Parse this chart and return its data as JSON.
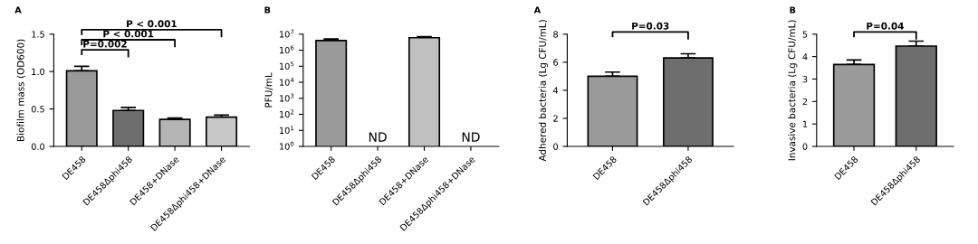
{
  "chart_data": [
    {
      "type": "bar",
      "title": "A",
      "ylabel": "Biofilm mass (OD600)",
      "categories": [
        "DE458",
        "DE458Δphi458",
        "DE458+DNase",
        "DE458Δphi458+DNase"
      ],
      "values": [
        1.01,
        0.48,
        0.36,
        0.39
      ],
      "errors": [
        [
          1.01,
          1.07
        ],
        [
          0.48,
          0.52
        ],
        [
          0.36,
          0.38
        ],
        [
          0.39,
          0.42
        ]
      ],
      "colors": [
        "#9a9a9a",
        "#6e6e6e",
        "#b4b4b4",
        "#c8c8c8"
      ],
      "ylim": [
        0,
        1.5
      ],
      "yticks": [
        {
          "value": 0,
          "label": "0.0"
        },
        0.5,
        {
          "value": 1,
          "label": "1.0"
        },
        1.5
      ],
      "annotations": [
        "P=0.002",
        "P < 0.001",
        "P < 0.001"
      ],
      "grid": false
    },
    {
      "type": "bar",
      "title": "B",
      "ylabel": "PFU/mL",
      "log": true,
      "categories": [
        "DE458",
        "DE458Δphi458",
        "DE458+DNase",
        "DE458Δphi458+DNase"
      ],
      "values": [
        4000000,
        null,
        6000000,
        null
      ],
      "errors": [
        [
          4000000,
          5000000
        ],
        null,
        [
          6000000,
          7000000
        ],
        null
      ],
      "colors": [
        "#9a9a9a",
        "#9a9a9a",
        "#c0c0c0",
        "#c0c0c0"
      ],
      "ylim": [
        1,
        10000000
      ],
      "yticks": [
        {
          "value": 1,
          "label": "10$^{0}$"
        },
        {
          "value": 10,
          "label": "10$^{1}$"
        },
        {
          "value": 100,
          "label": "10$^{2}$"
        },
        {
          "value": 1000,
          "label": "10$^{3}$"
        },
        {
          "value": 10000,
          "label": "10$^{4}$"
        },
        {
          "value": 100000,
          "label": "10$^{5}$"
        },
        {
          "value": 1000000,
          "label": "10$^{6}$"
        },
        {
          "value": 10000000,
          "label": "10$^{7}$"
        }
      ],
      "annotations": [
        "ND",
        "ND"
      ],
      "grid": false
    },
    {
      "type": "bar",
      "title": "A",
      "ylabel": "Adhered bacteria (Lg CFU/mL)",
      "categories": [
        "DE458",
        "DE458Δphi458"
      ],
      "values": [
        5.0,
        6.3
      ],
      "errors": [
        [
          5.0,
          5.3
        ],
        [
          6.3,
          6.6
        ]
      ],
      "colors": [
        "#9a9a9a",
        "#6e6e6e"
      ],
      "ylim": [
        0,
        8
      ],
      "yticks": [
        0,
        2,
        4,
        6,
        8
      ],
      "annotations": [
        "P=0.03"
      ],
      "grid": false
    },
    {
      "type": "bar",
      "title": "B",
      "ylabel": "Invasive bacteria (Lg CFU/mL)",
      "categories": [
        "DE458",
        "DE458Δphi458"
      ],
      "values": [
        3.65,
        4.47
      ],
      "errors": [
        [
          3.65,
          3.85
        ],
        [
          4.47,
          4.69
        ]
      ],
      "colors": [
        "#9a9a9a",
        "#6e6e6e"
      ],
      "ylim": [
        0,
        5
      ],
      "yticks": [
        0,
        1,
        2,
        3,
        4,
        5
      ],
      "annotations": [
        "P=0.04"
      ],
      "grid": false
    }
  ]
}
